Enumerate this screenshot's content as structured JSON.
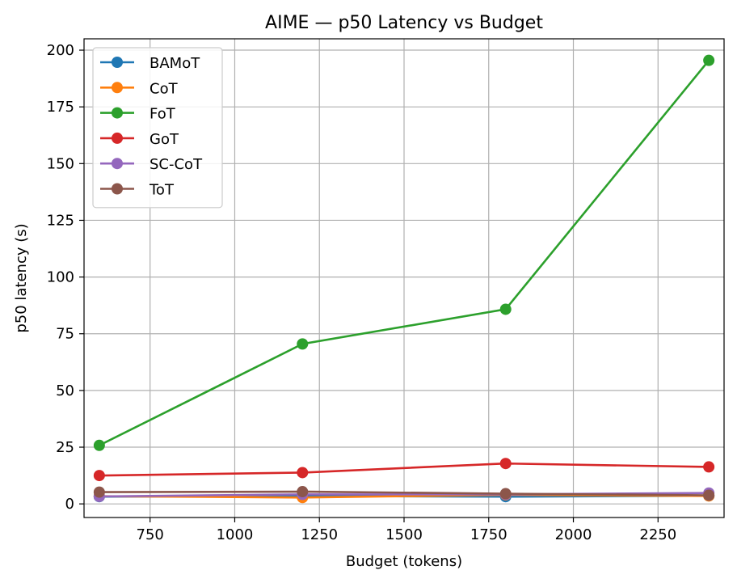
{
  "chart_data": {
    "type": "line",
    "title": "AIME — p50 Latency vs Budget",
    "xlabel": "Budget (tokens)",
    "ylabel": "p50 latency (s)",
    "x": [
      600,
      1200,
      1800,
      2400
    ],
    "xlim": [
      555,
      2445
    ],
    "ylim": [
      -6,
      205
    ],
    "xticks": [
      750,
      1000,
      1250,
      1500,
      1750,
      2000,
      2250
    ],
    "yticks": [
      0,
      25,
      50,
      75,
      100,
      125,
      150,
      175,
      200
    ],
    "grid": true,
    "legend_position": "top-left",
    "series": [
      {
        "name": "BAMoT",
        "color": "#1f77b4",
        "values": [
          3.2,
          3.5,
          3.2,
          3.6
        ]
      },
      {
        "name": "CoT",
        "color": "#ff7f0e",
        "values": [
          3.4,
          2.8,
          4.0,
          3.5
        ]
      },
      {
        "name": "FoT",
        "color": "#2ca02c",
        "values": [
          25.8,
          70.5,
          85.8,
          195.5
        ]
      },
      {
        "name": "GoT",
        "color": "#d62728",
        "values": [
          12.5,
          13.8,
          17.8,
          16.3
        ]
      },
      {
        "name": "SC-CoT",
        "color": "#9467bd",
        "values": [
          3.3,
          4.2,
          4.2,
          4.8
        ]
      },
      {
        "name": "ToT",
        "color": "#8c564b",
        "values": [
          5.2,
          5.4,
          4.5,
          3.8
        ]
      }
    ]
  }
}
